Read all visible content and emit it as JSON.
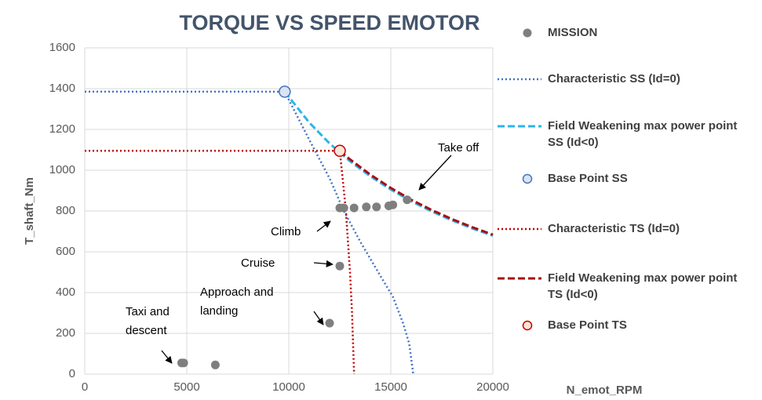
{
  "chart_data": {
    "type": "scatter",
    "title": "TORQUE VS SPEED EMOTOR",
    "x_label": "N_emot_RPM",
    "y_label": "T_shaft_Nm",
    "xlim": [
      0,
      20000
    ],
    "ylim": [
      0,
      1600
    ],
    "xticks": [
      0,
      5000,
      10000,
      15000,
      20000
    ],
    "yticks": [
      0,
      200,
      400,
      600,
      800,
      1000,
      1200,
      1400,
      1600
    ],
    "grid": true,
    "legend": "right",
    "series": [
      {
        "name": "MISSION",
        "color": "#7f7f7f",
        "mode": "markers",
        "x": [
          4750,
          4850,
          6400,
          12000,
          12500,
          12500,
          12700,
          13200,
          13800,
          14300,
          14900,
          15100,
          15800
        ],
        "values": [
          55,
          55,
          45,
          250,
          530,
          815,
          815,
          815,
          820,
          820,
          825,
          830,
          855
        ]
      },
      {
        "name": "Characteristic SS (Id=0)",
        "color": "#4472c4",
        "mode": "line",
        "dash": "dotted",
        "x": [
          0,
          9800,
          11000,
          12000,
          12700,
          13500,
          14500,
          15100,
          15600,
          15900,
          16100
        ],
        "values": [
          1385,
          1385,
          1150,
          960,
          800,
          650,
          480,
          380,
          250,
          150,
          0
        ]
      },
      {
        "name": "Field Weakening max power point SS (Id<0)",
        "color": "#2eb4e8",
        "mode": "line",
        "dash": "dashed",
        "x": [
          9800,
          11000,
          12000,
          13000,
          14000,
          15000,
          16000,
          17000,
          18000,
          19000,
          20000
        ],
        "values": [
          1385,
          1234,
          1131,
          1044,
          970,
          905,
          848,
          798,
          754,
          714,
          679
        ]
      },
      {
        "name": "Base Point SS",
        "color": "#4472c4",
        "fill": "#dae3f3",
        "mode": "markers",
        "size": 7,
        "x": [
          9800
        ],
        "values": [
          1385
        ]
      },
      {
        "name": "Characteristic TS (Id=0)",
        "color": "#c00000",
        "mode": "line",
        "dash": "dotted",
        "x": [
          0,
          12500,
          12800,
          13000,
          13100,
          13200
        ],
        "values": [
          1095,
          1095,
          800,
          500,
          300,
          0
        ]
      },
      {
        "name": "Field Weakening max power point TS (Id<0)",
        "color": "#a50f15",
        "mode": "line",
        "dash": "dashed",
        "x": [
          12500,
          13000,
          14000,
          15000,
          16000,
          17000,
          18000,
          19000,
          20000
        ],
        "values": [
          1095,
          1053,
          978,
          913,
          855,
          805,
          760,
          720,
          684
        ]
      },
      {
        "name": "Base Point TS",
        "color": "#c00000",
        "fill": "#fbe5d6",
        "mode": "markers",
        "size": 7,
        "x": [
          12500
        ],
        "values": [
          1095
        ]
      }
    ],
    "annotations": [
      {
        "lines": [
          "Take off"
        ]
      },
      {
        "lines": [
          "Climb"
        ]
      },
      {
        "lines": [
          "Cruise"
        ]
      },
      {
        "lines": [
          "Approach and",
          "landing"
        ]
      },
      {
        "lines": [
          "Taxi and",
          "descent"
        ]
      }
    ]
  }
}
